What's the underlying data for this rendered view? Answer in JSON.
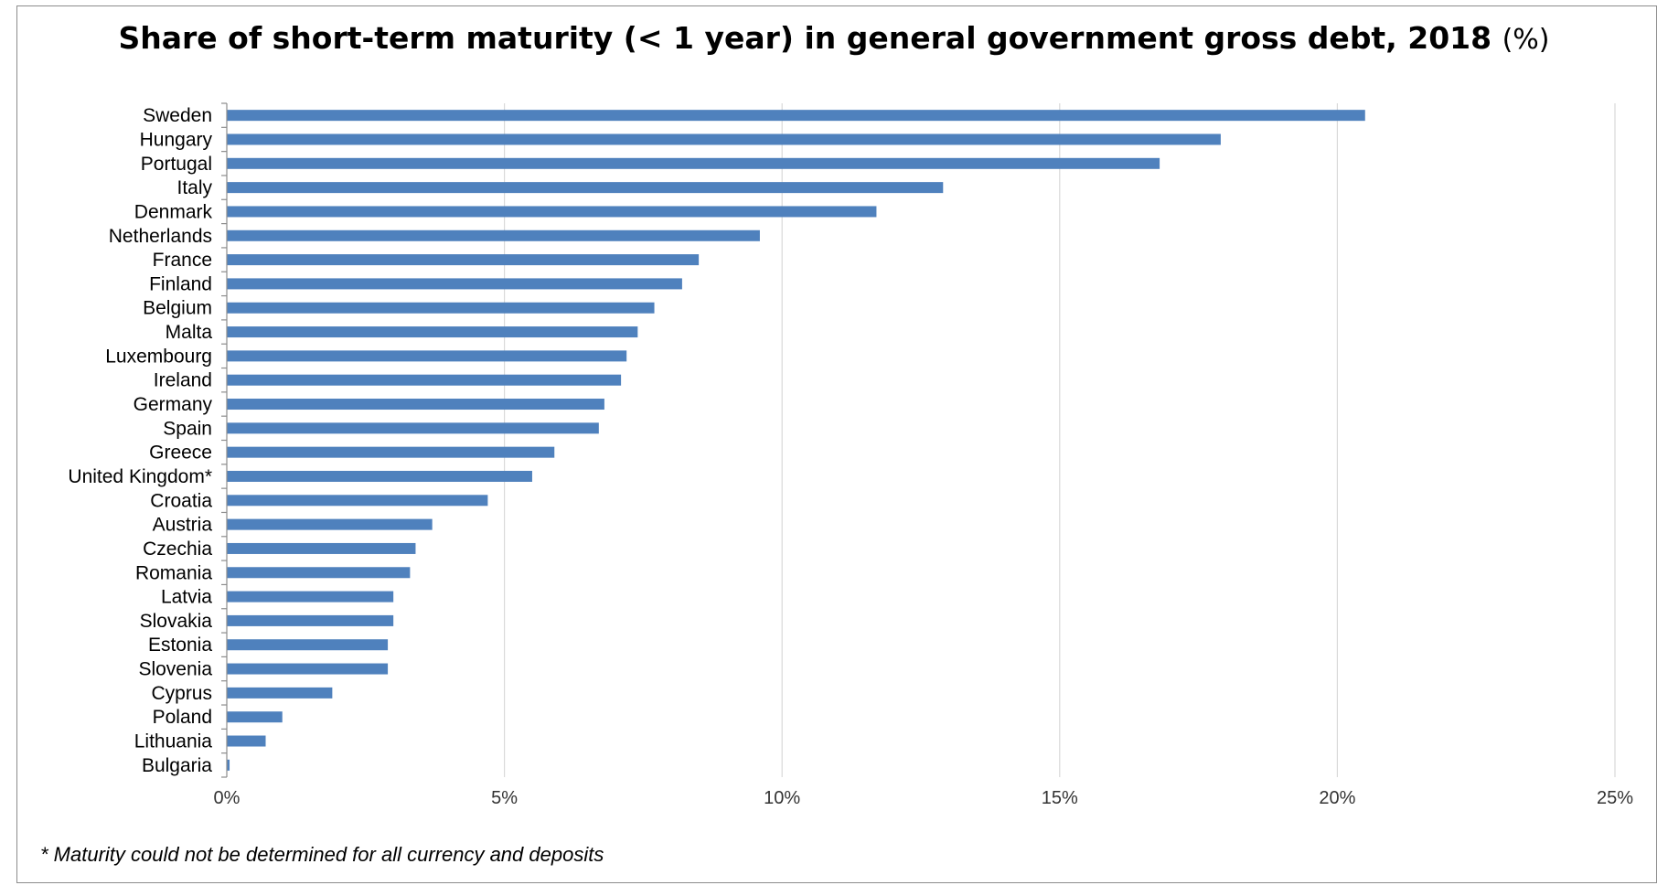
{
  "chart_data": {
    "type": "bar",
    "orientation": "horizontal",
    "title": "Share of short-term maturity (< 1 year) in general government gross debt, 2018",
    "title_unit": "(%)",
    "xlabel": "",
    "ylabel": "",
    "categories": [
      "Sweden",
      "Hungary",
      "Portugal",
      "Italy",
      "Denmark",
      "Netherlands",
      "France",
      "Finland",
      "Belgium",
      "Malta",
      "Luxembourg",
      "Ireland",
      "Germany",
      "Spain",
      "Greece",
      "United Kingdom*",
      "Croatia",
      "Austria",
      "Czechia",
      "Romania",
      "Latvia",
      "Slovakia",
      "Estonia",
      "Slovenia",
      "Cyprus",
      "Poland",
      "Lithuania",
      "Bulgaria"
    ],
    "values": [
      20.5,
      17.9,
      16.8,
      12.9,
      11.7,
      9.6,
      8.5,
      8.2,
      7.7,
      7.4,
      7.2,
      7.1,
      6.8,
      6.7,
      5.9,
      5.5,
      4.7,
      3.7,
      3.4,
      3.3,
      3.0,
      3.0,
      2.9,
      2.9,
      1.9,
      1.0,
      0.7,
      0.05
    ],
    "xlim": [
      0,
      25
    ],
    "xticks": [
      0,
      5,
      10,
      15,
      20,
      25
    ],
    "xtick_labels": [
      "0%",
      "5%",
      "10%",
      "15%",
      "20%",
      "25%"
    ],
    "grid": true,
    "legend": "none",
    "bar_color": "#4f81bd",
    "grid_color": "#d9d9d9"
  },
  "footnote": "* Maturity could not be determined for all currency and deposits"
}
